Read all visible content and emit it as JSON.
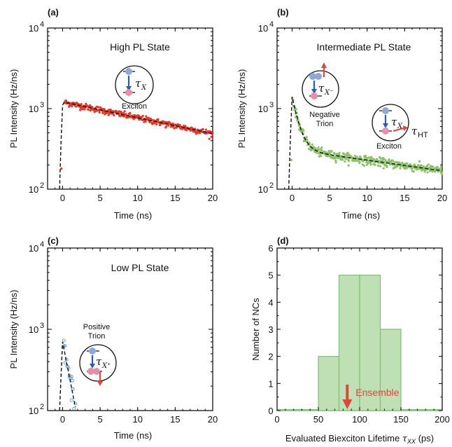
{
  "colors": {
    "panel_a": "#e03a2a",
    "panel_b": "#8cc06a",
    "panel_c": "#6fa0cc",
    "hist_fill": "#bfe0b5",
    "hist_edge": "#7fbf76",
    "ensemble": "#d84a3a",
    "electron": "#8fa8d6",
    "hole": "#e58fa8",
    "arrow": "#2a5ab5"
  },
  "panels": {
    "a": {
      "label": "(a)",
      "state": "High PL State",
      "icon_caption": "Exciton",
      "tau_main": "τ",
      "tau_sub": "X"
    },
    "b": {
      "label": "(b)",
      "state": "Intermediate PL State",
      "icon_caption_1a": "Negative",
      "icon_caption_1b": "Trion",
      "tau1_main": "τ",
      "tau1_sub": "X⁻",
      "icon_caption_2": "Exciton",
      "tau2_main": "τ",
      "tau2_sub": "X",
      "tau_ht_main": "τ",
      "tau_ht_sub": "HT"
    },
    "c": {
      "label": "(c)",
      "state": "Low PL State",
      "icon_caption_a": "Positive",
      "icon_caption_b": "Trion",
      "tau_main": "τ",
      "tau_sub": "X⁺"
    },
    "d": {
      "label": "(d)",
      "annotation": "Ensemble",
      "xlabel": "Evaluated Biexciton Lifetime",
      "xlabel_tau": "τ",
      "xlabel_tau_sub": "XX",
      "xlabel_unit": "(ps)"
    }
  },
  "shared": {
    "ylabel": "PL Intensity (Hz/ns)",
    "xlabel": "Time (ns)",
    "x_ticks": [
      "0",
      "5",
      "10",
      "15",
      "20"
    ],
    "y_ticks": [
      "10",
      "10",
      "10"
    ],
    "y_exp": [
      "2",
      "3",
      "4"
    ]
  },
  "chart_data": [
    {
      "type": "scatter",
      "panel": "a",
      "title": "High PL State",
      "xlabel": "Time (ns)",
      "ylabel": "PL Intensity (Hz/ns)",
      "xlim": [
        -2,
        20
      ],
      "ylim": [
        100,
        10000
      ],
      "y_scale": "log",
      "fit": {
        "type": "single exponential",
        "peak_time": 0.2,
        "peak": 1200,
        "end_value": 480
      }
    },
    {
      "type": "scatter",
      "panel": "b",
      "title": "Intermediate PL State",
      "xlabel": "Time (ns)",
      "ylabel": "PL Intensity (Hz/ns)",
      "xlim": [
        -2,
        20
      ],
      "ylim": [
        100,
        10000
      ],
      "y_scale": "log",
      "fit": {
        "type": "biexponential",
        "peak": 1450,
        "values_at": {
          "2": 520,
          "5": 320,
          "10": 250,
          "15": 200,
          "20": 170
        }
      }
    },
    {
      "type": "scatter",
      "panel": "c",
      "title": "Low PL State",
      "xlabel": "Time (ns)",
      "ylabel": "PL Intensity (Hz/ns)",
      "xlim": [
        -2,
        20
      ],
      "ylim": [
        100,
        10000
      ],
      "y_scale": "log",
      "fit": {
        "type": "single exponential",
        "peak": 700,
        "values_at": {
          "0.5": 400,
          "1": 250,
          "1.5": 150,
          "2": 105
        }
      }
    },
    {
      "type": "bar",
      "panel": "d",
      "xlabel": "Evaluated Biexciton Lifetime τXX (ps)",
      "ylabel": "Number of NCs",
      "bin_edges": [
        0,
        25,
        50,
        75,
        100,
        125,
        150,
        175,
        200
      ],
      "values": [
        0,
        0,
        2,
        5,
        5,
        3,
        0,
        0
      ],
      "xlim": [
        0,
        200
      ],
      "ylim": [
        0,
        6
      ],
      "x_ticks": [
        "0",
        "50",
        "100",
        "150",
        "200"
      ],
      "y_ticks": [
        "0",
        "1",
        "2",
        "3",
        "4",
        "5",
        "6"
      ],
      "annotation": {
        "text": "Ensemble",
        "x": 85
      }
    }
  ]
}
